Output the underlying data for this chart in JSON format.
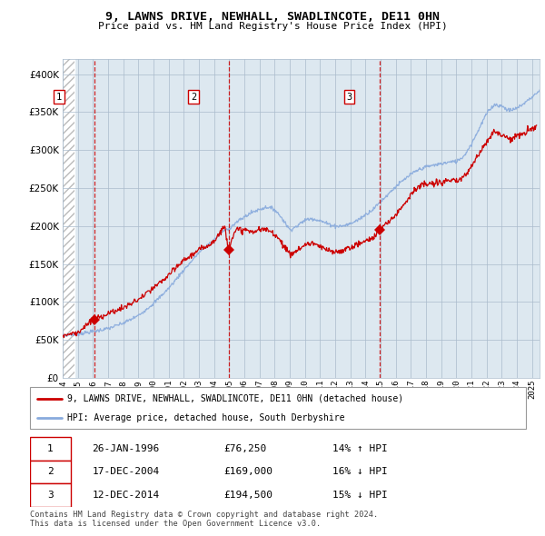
{
  "title": "9, LAWNS DRIVE, NEWHALL, SWADLINCOTE, DE11 0HN",
  "subtitle": "Price paid vs. HM Land Registry's House Price Index (HPI)",
  "xlim_start": 1994.0,
  "xlim_end": 2025.5,
  "ylim": [
    0,
    420000
  ],
  "yticks": [
    0,
    50000,
    100000,
    150000,
    200000,
    250000,
    300000,
    350000,
    400000
  ],
  "ytick_labels": [
    "£0",
    "£50K",
    "£100K",
    "£150K",
    "£200K",
    "£250K",
    "£300K",
    "£350K",
    "£400K"
  ],
  "sale_dates": [
    1996.07,
    2004.96,
    2014.95
  ],
  "sale_prices": [
    76250,
    169000,
    194500
  ],
  "sale_labels": [
    "1",
    "2",
    "3"
  ],
  "vline_color": "#cc0000",
  "sale_marker_color": "#cc0000",
  "hpi_line_color": "#88aadd",
  "price_line_color": "#cc0000",
  "plot_bg_color": "#dde8f0",
  "legend_entries": [
    "9, LAWNS DRIVE, NEWHALL, SWADLINCOTE, DE11 0HN (detached house)",
    "HPI: Average price, detached house, South Derbyshire"
  ],
  "table_data": [
    [
      "1",
      "26-JAN-1996",
      "£76,250",
      "14% ↑ HPI"
    ],
    [
      "2",
      "17-DEC-2004",
      "£169,000",
      "16% ↓ HPI"
    ],
    [
      "3",
      "12-DEC-2014",
      "£194,500",
      "15% ↓ HPI"
    ]
  ],
  "footer_text": "Contains HM Land Registry data © Crown copyright and database right 2024.\nThis data is licensed under the Open Government Licence v3.0.",
  "grid_color": "#aabbcc",
  "xticks": [
    1994,
    1995,
    1996,
    1997,
    1998,
    1999,
    2000,
    2001,
    2002,
    2003,
    2004,
    2005,
    2006,
    2007,
    2008,
    2009,
    2010,
    2011,
    2012,
    2013,
    2014,
    2015,
    2016,
    2017,
    2018,
    2019,
    2020,
    2021,
    2022,
    2023,
    2024,
    2025
  ],
  "hpi_anchors": [
    [
      1994.0,
      56000
    ],
    [
      1995.0,
      58000
    ],
    [
      1996.0,
      61000
    ],
    [
      1997.0,
      65000
    ],
    [
      1998.0,
      72000
    ],
    [
      1999.0,
      82000
    ],
    [
      2000.0,
      98000
    ],
    [
      2001.0,
      118000
    ],
    [
      2002.0,
      142000
    ],
    [
      2003.0,
      165000
    ],
    [
      2004.0,
      182000
    ],
    [
      2004.5,
      192000
    ],
    [
      2005.0,
      197000
    ],
    [
      2005.5,
      205000
    ],
    [
      2006.0,
      212000
    ],
    [
      2006.5,
      218000
    ],
    [
      2007.0,
      222000
    ],
    [
      2007.5,
      225000
    ],
    [
      2008.0,
      222000
    ],
    [
      2008.5,
      210000
    ],
    [
      2009.0,
      195000
    ],
    [
      2009.5,
      200000
    ],
    [
      2010.0,
      208000
    ],
    [
      2010.5,
      210000
    ],
    [
      2011.0,
      207000
    ],
    [
      2011.5,
      203000
    ],
    [
      2012.0,
      200000
    ],
    [
      2012.5,
      200000
    ],
    [
      2013.0,
      203000
    ],
    [
      2013.5,
      208000
    ],
    [
      2014.0,
      215000
    ],
    [
      2014.5,
      222000
    ],
    [
      2015.0,
      232000
    ],
    [
      2015.5,
      242000
    ],
    [
      2016.0,
      252000
    ],
    [
      2016.5,
      260000
    ],
    [
      2017.0,
      268000
    ],
    [
      2017.5,
      274000
    ],
    [
      2018.0,
      278000
    ],
    [
      2018.5,
      280000
    ],
    [
      2019.0,
      282000
    ],
    [
      2019.5,
      284000
    ],
    [
      2020.0,
      285000
    ],
    [
      2020.5,
      292000
    ],
    [
      2021.0,
      308000
    ],
    [
      2021.5,
      328000
    ],
    [
      2022.0,
      348000
    ],
    [
      2022.5,
      360000
    ],
    [
      2023.0,
      358000
    ],
    [
      2023.5,
      352000
    ],
    [
      2024.0,
      355000
    ],
    [
      2024.5,
      362000
    ],
    [
      2025.0,
      370000
    ],
    [
      2025.5,
      378000
    ]
  ],
  "pp_anchors": [
    [
      1994.0,
      56000
    ],
    [
      1995.0,
      60000
    ],
    [
      1996.0,
      76250
    ],
    [
      1996.5,
      80000
    ],
    [
      1997.0,
      85000
    ],
    [
      1998.0,
      92000
    ],
    [
      1999.0,
      103000
    ],
    [
      2000.0,
      118000
    ],
    [
      2001.0,
      135000
    ],
    [
      2002.0,
      155000
    ],
    [
      2003.0,
      168000
    ],
    [
      2004.0,
      180000
    ],
    [
      2004.7,
      200000
    ],
    [
      2004.96,
      169000
    ],
    [
      2005.2,
      185000
    ],
    [
      2005.5,
      195000
    ],
    [
      2006.0,
      195000
    ],
    [
      2006.5,
      192000
    ],
    [
      2007.0,
      195000
    ],
    [
      2007.5,
      195000
    ],
    [
      2008.0,
      190000
    ],
    [
      2008.5,
      178000
    ],
    [
      2009.0,
      162000
    ],
    [
      2009.5,
      168000
    ],
    [
      2010.0,
      175000
    ],
    [
      2010.5,
      178000
    ],
    [
      2011.0,
      172000
    ],
    [
      2011.5,
      168000
    ],
    [
      2012.0,
      165000
    ],
    [
      2012.5,
      168000
    ],
    [
      2013.0,
      172000
    ],
    [
      2013.5,
      176000
    ],
    [
      2014.0,
      180000
    ],
    [
      2014.5,
      185000
    ],
    [
      2014.95,
      194500
    ],
    [
      2015.5,
      205000
    ],
    [
      2016.0,
      215000
    ],
    [
      2016.5,
      228000
    ],
    [
      2017.0,
      242000
    ],
    [
      2017.5,
      252000
    ],
    [
      2018.0,
      255000
    ],
    [
      2018.5,
      255000
    ],
    [
      2019.0,
      258000
    ],
    [
      2019.5,
      260000
    ],
    [
      2020.0,
      258000
    ],
    [
      2020.5,
      265000
    ],
    [
      2021.0,
      278000
    ],
    [
      2021.5,
      295000
    ],
    [
      2022.0,
      312000
    ],
    [
      2022.5,
      325000
    ],
    [
      2023.0,
      320000
    ],
    [
      2023.5,
      315000
    ],
    [
      2024.0,
      318000
    ],
    [
      2024.5,
      322000
    ],
    [
      2025.0,
      328000
    ],
    [
      2025.3,
      332000
    ]
  ]
}
